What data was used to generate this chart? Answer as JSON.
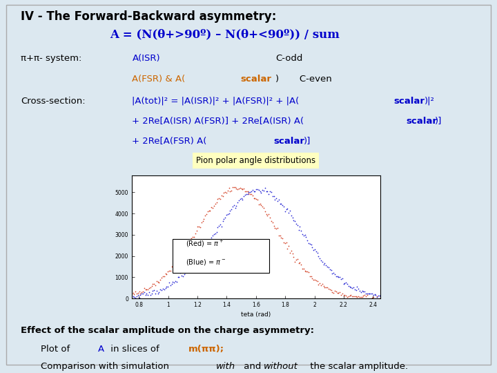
{
  "bg_color": "#dce8f0",
  "title_line1": "IV - The Forward-Backward asymmetry:",
  "title_line2": "A = (N(θ+>90º) – N(θ+<90º)) / sum",
  "system_label": "π+π- system:",
  "cross_label": "Cross-section:",
  "bottom_title": "Effect of the scalar amplitude on the charge asymmetry:",
  "bottom_line1": "Plot of A in slices of m(ππ);",
  "bottom_line2": "Comparison with simulation with and without the scalar amplitude.",
  "plot_title": "Pion polar angle distributions",
  "plot_bg": "#ffffc0",
  "legend_box_color": "#ffffff",
  "blue_color": "#0000cc",
  "red_color": "#cc2200",
  "orange_color": "#cc6600",
  "black_color": "#000000"
}
